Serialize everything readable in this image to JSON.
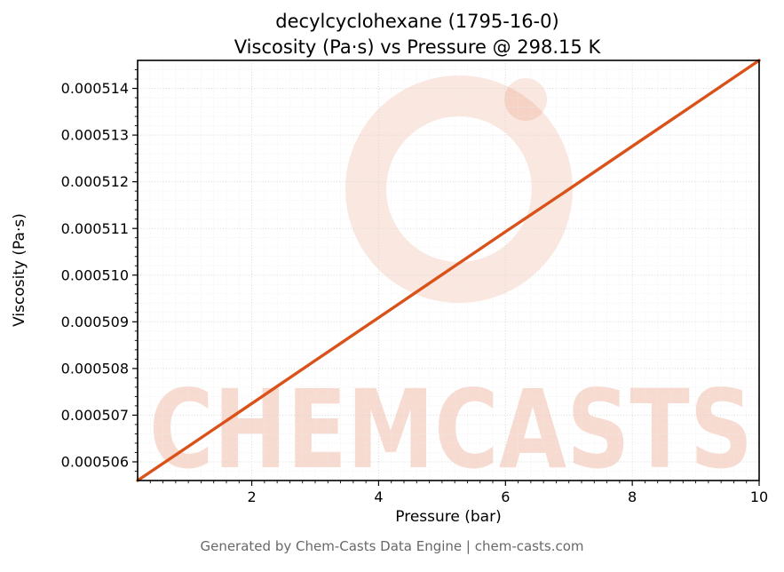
{
  "title": {
    "line1": "decylcyclohexane (1795-16-0)",
    "line2": "Viscosity (Pa·s) vs Pressure @ 298.15 K"
  },
  "footer": "Generated by Chem-Casts Data Engine | chem-casts.com",
  "watermark": {
    "text": "CHEMCASTS",
    "color": "#d9521a",
    "text_opacity": 0.2,
    "ring_opacity": 0.14
  },
  "chart_data": {
    "type": "line",
    "title": "decylcyclohexane (1795-16-0) — Viscosity (Pa·s) vs Pressure @ 298.15 K",
    "xlabel": "Pressure (bar)",
    "ylabel": "Viscosity (Pa·s)",
    "xlim": [
      0.2,
      10
    ],
    "ylim": [
      0.0005056,
      0.0005146
    ],
    "grid": true,
    "legend": false,
    "line_color": "#d9521a",
    "x_ticks": {
      "values": [
        2,
        4,
        6,
        8,
        10
      ],
      "labels": [
        "2",
        "4",
        "6",
        "8",
        "10"
      ],
      "minor_step": 0.2
    },
    "y_ticks": {
      "values": [
        0.000506,
        0.000507,
        0.000508,
        0.000509,
        0.00051,
        0.000511,
        0.000512,
        0.000513,
        0.000514
      ],
      "labels": [
        "0.000506",
        "0.000507",
        "0.000508",
        "0.000509",
        "0.000510",
        "0.000511",
        "0.000512",
        "0.000513",
        "0.000514"
      ],
      "minor_step": 2e-07
    },
    "series": [
      {
        "name": "viscosity",
        "x": [
          0.2,
          1,
          2,
          3,
          4,
          5,
          6,
          7,
          8,
          9,
          10
        ],
        "y": [
          0.0005056,
          0.00050633,
          0.00050725,
          0.00050817,
          0.00050909,
          0.00051001,
          0.00051093,
          0.00051184,
          0.00051276,
          0.00051368,
          0.0005146
        ]
      }
    ]
  }
}
